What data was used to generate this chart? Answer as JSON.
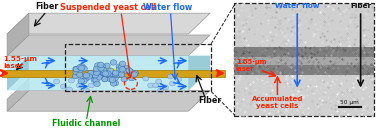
{
  "fig_width": 3.78,
  "fig_height": 1.33,
  "dpi": 100,
  "bg_color": "#ffffff",
  "schematic": {
    "platform_color": "#c8c8c8",
    "platform_edge": "#999999",
    "channel_color": "#b8e8f0",
    "fiber_color": "#d4a017",
    "fiber_edge": "#a07800",
    "fiber_glow_color": "#d8f000",
    "laser_color": "#ff2200",
    "water_flow_color": "#1a6aff",
    "cell_fill": "#88b8e0",
    "cell_edge": "#3366aa",
    "scattered_fill": "#aaccee",
    "scattered_edge": "#5588bb",
    "dashed_box_color": "#222222",
    "annotation_red": "#ff2200",
    "annotation_blue": "#1a6aff",
    "annotation_green": "#009900",
    "annotation_black": "#111111",
    "inset_bg_light": "#c8c8c8",
    "inset_bg_dark": "#888888",
    "inset_fiber_line": "#bbbbbb",
    "scale_bar_color": "#111111"
  },
  "labels": {
    "suspended_yeast": "Suspended yeast cell",
    "water_flow_top": "Water flow",
    "fiber_top": "Fiber",
    "laser_label": "1.55-μm\nlaser",
    "fluidic_channel": "Fluidic channel",
    "fiber_bottom_right": "Fiber",
    "inset_laser": "1.55-μm\nlaser",
    "inset_water": "Water flow",
    "inset_fiber": "Fiber",
    "inset_accumulated": "Accumulated\nyeast cells",
    "scale_bar": "50 μm"
  }
}
